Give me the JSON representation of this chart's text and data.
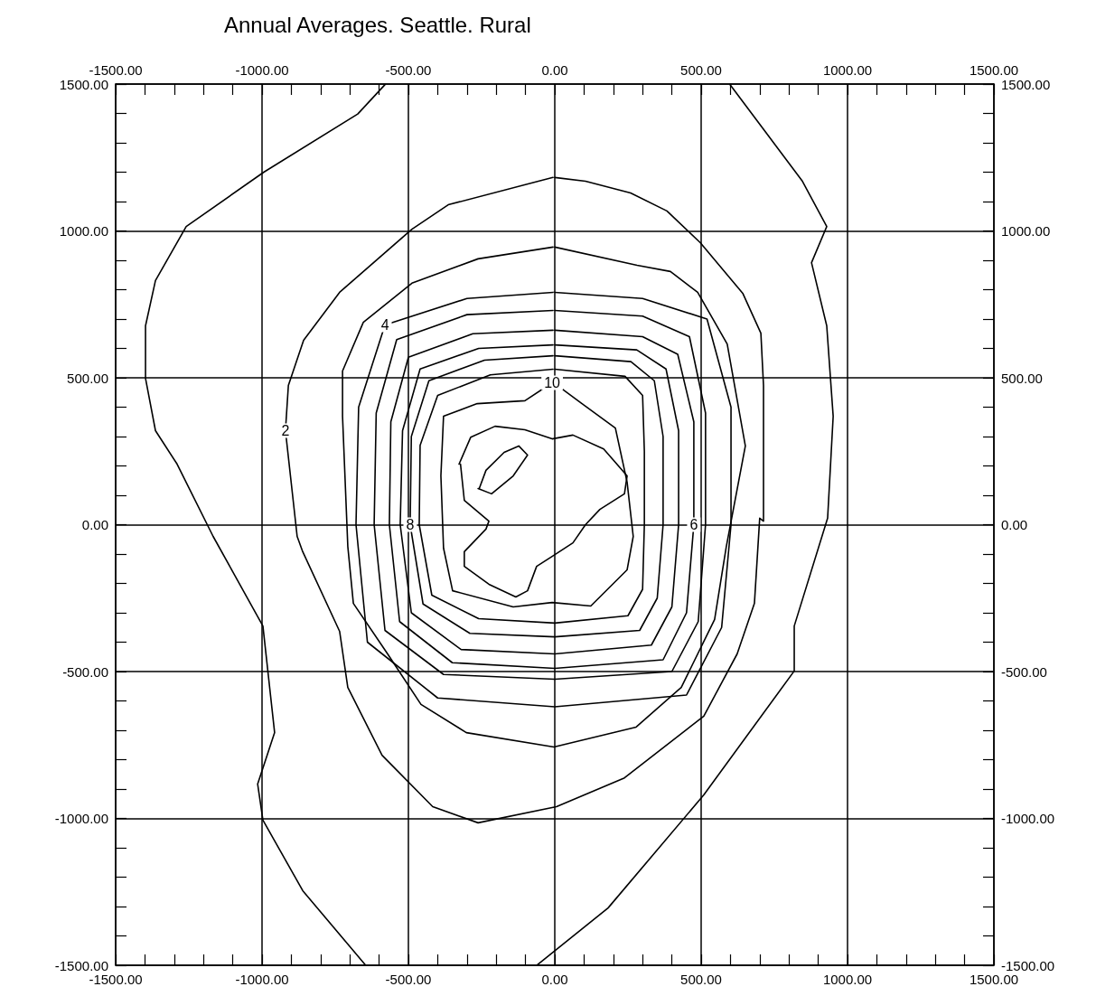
{
  "chart_data": {
    "type": "line",
    "title": "Annual Averages. Seattle. Rural",
    "marker": "none",
    "line_style": "solid",
    "grid": true,
    "legend": false,
    "xlim": [
      -1500,
      1500
    ],
    "x2lim": [
      -1500,
      1500
    ],
    "ylim": [
      -1500,
      1500
    ],
    "y2lim": [
      -1500,
      1500
    ],
    "xticks": [
      {
        "value": -1500,
        "label": "-1500.00"
      },
      {
        "value": -1400,
        "label": null
      },
      {
        "value": -1300,
        "label": null
      },
      {
        "value": -1200,
        "label": null
      },
      {
        "value": -1100,
        "label": null
      },
      {
        "value": -1000,
        "label": "-1000.00"
      },
      {
        "value": -900,
        "label": null
      },
      {
        "value": -800,
        "label": null
      },
      {
        "value": -700,
        "label": null
      },
      {
        "value": -600,
        "label": null
      },
      {
        "value": -500,
        "label": "-500.00"
      },
      {
        "value": -400,
        "label": null
      },
      {
        "value": -300,
        "label": null
      },
      {
        "value": -200,
        "label": null
      },
      {
        "value": -100,
        "label": null
      },
      {
        "value": 0,
        "label": "0.00"
      },
      {
        "value": 100,
        "label": null
      },
      {
        "value": 200,
        "label": null
      },
      {
        "value": 300,
        "label": null
      },
      {
        "value": 400,
        "label": null
      },
      {
        "value": 500,
        "label": "500.00"
      },
      {
        "value": 600,
        "label": null
      },
      {
        "value": 700,
        "label": null
      },
      {
        "value": 800,
        "label": null
      },
      {
        "value": 900,
        "label": null
      },
      {
        "value": 1000,
        "label": "1000.00"
      },
      {
        "value": 1100,
        "label": null
      },
      {
        "value": 1200,
        "label": null
      },
      {
        "value": 1300,
        "label": null
      },
      {
        "value": 1400,
        "label": null
      },
      {
        "value": 1500,
        "label": "1500.00"
      }
    ],
    "x2ticks": [
      {
        "value": -1500,
        "label": "-1500.00"
      },
      {
        "value": -1400,
        "label": null
      },
      {
        "value": -1300,
        "label": null
      },
      {
        "value": -1200,
        "label": null
      },
      {
        "value": -1100,
        "label": null
      },
      {
        "value": -1000,
        "label": "-1000.00"
      },
      {
        "value": -900,
        "label": null
      },
      {
        "value": -800,
        "label": null
      },
      {
        "value": -700,
        "label": null
      },
      {
        "value": -600,
        "label": null
      },
      {
        "value": -500,
        "label": "-500.00"
      },
      {
        "value": -400,
        "label": null
      },
      {
        "value": -300,
        "label": null
      },
      {
        "value": -200,
        "label": null
      },
      {
        "value": -100,
        "label": null
      },
      {
        "value": 0,
        "label": "0.00"
      },
      {
        "value": 100,
        "label": null
      },
      {
        "value": 200,
        "label": null
      },
      {
        "value": 300,
        "label": null
      },
      {
        "value": 400,
        "label": null
      },
      {
        "value": 500,
        "label": "500.00"
      },
      {
        "value": 600,
        "label": null
      },
      {
        "value": 700,
        "label": null
      },
      {
        "value": 800,
        "label": null
      },
      {
        "value": 900,
        "label": null
      },
      {
        "value": 1000,
        "label": "1000.00"
      },
      {
        "value": 1100,
        "label": null
      },
      {
        "value": 1200,
        "label": null
      },
      {
        "value": 1300,
        "label": null
      },
      {
        "value": 1400,
        "label": null
      },
      {
        "value": 1500,
        "label": "1500.00"
      }
    ],
    "yticks": [
      {
        "value": -1500,
        "label": "-1500.00"
      },
      {
        "value": -1400,
        "label": null
      },
      {
        "value": -1300,
        "label": null
      },
      {
        "value": -1200,
        "label": null
      },
      {
        "value": -1100,
        "label": null
      },
      {
        "value": -1000,
        "label": "-1000.00"
      },
      {
        "value": -900,
        "label": null
      },
      {
        "value": -800,
        "label": null
      },
      {
        "value": -700,
        "label": null
      },
      {
        "value": -600,
        "label": null
      },
      {
        "value": -500,
        "label": "-500.00"
      },
      {
        "value": -400,
        "label": null
      },
      {
        "value": -300,
        "label": null
      },
      {
        "value": -200,
        "label": null
      },
      {
        "value": -100,
        "label": null
      },
      {
        "value": 0,
        "label": "0.00"
      },
      {
        "value": 100,
        "label": null
      },
      {
        "value": 200,
        "label": null
      },
      {
        "value": 300,
        "label": null
      },
      {
        "value": 400,
        "label": null
      },
      {
        "value": 500,
        "label": "500.00"
      },
      {
        "value": 600,
        "label": null
      },
      {
        "value": 700,
        "label": null
      },
      {
        "value": 800,
        "label": null
      },
      {
        "value": 900,
        "label": null
      },
      {
        "value": 1000,
        "label": "1000.00"
      },
      {
        "value": 1100,
        "label": null
      },
      {
        "value": 1200,
        "label": null
      },
      {
        "value": 1300,
        "label": null
      },
      {
        "value": 1400,
        "label": null
      },
      {
        "value": 1500,
        "label": "1500.00"
      }
    ],
    "y2ticks": [
      {
        "value": -1500,
        "label": "-1500.00"
      },
      {
        "value": -1400,
        "label": null
      },
      {
        "value": -1300,
        "label": null
      },
      {
        "value": -1200,
        "label": null
      },
      {
        "value": -1100,
        "label": null
      },
      {
        "value": -1000,
        "label": "-1000.00"
      },
      {
        "value": -900,
        "label": null
      },
      {
        "value": -800,
        "label": null
      },
      {
        "value": -700,
        "label": null
      },
      {
        "value": -600,
        "label": null
      },
      {
        "value": -500,
        "label": "-500.00"
      },
      {
        "value": -400,
        "label": null
      },
      {
        "value": -300,
        "label": null
      },
      {
        "value": -200,
        "label": null
      },
      {
        "value": -100,
        "label": null
      },
      {
        "value": 0,
        "label": "0.00"
      },
      {
        "value": 100,
        "label": null
      },
      {
        "value": 200,
        "label": null
      },
      {
        "value": 300,
        "label": null
      },
      {
        "value": 400,
        "label": null
      },
      {
        "value": 500,
        "label": "500.00"
      },
      {
        "value": 600,
        "label": null
      },
      {
        "value": 700,
        "label": null
      },
      {
        "value": 800,
        "label": null
      },
      {
        "value": 900,
        "label": null
      },
      {
        "value": 1000,
        "label": "1000.00"
      },
      {
        "value": 1100,
        "label": null
      },
      {
        "value": 1200,
        "label": null
      },
      {
        "value": 1300,
        "label": null
      },
      {
        "value": 1400,
        "label": null
      },
      {
        "value": 1500,
        "label": "1500.00"
      }
    ],
    "series": [
      {
        "color": "#000000",
        "x": [
          -580,
          -673,
          -994,
          -1259,
          -1364,
          -1398,
          -1398,
          -1364,
          -1290,
          -1167,
          -997,
          -957,
          -1015,
          -997,
          -861,
          -648
        ],
        "values": [
          1498,
          1398,
          1200,
          1015,
          831,
          677,
          498,
          320,
          206,
          -40,
          -345,
          -708,
          -883,
          -1006,
          -1246,
          -1498
        ]
      },
      {
        "color": "#000000",
        "x": [
          -59,
          182,
          509,
          818,
          818,
          932,
          951,
          929,
          877,
          929,
          846,
          599
        ],
        "values": [
          -1498,
          -1305,
          -920,
          -498,
          -345,
          22,
          369,
          677,
          892,
          1015,
          1169,
          1498
        ]
      },
      {
        "name": "2",
        "color": "#000000",
        "x": [
          -6,
          -364,
          -488,
          -735,
          -858,
          -910,
          -920,
          -880,
          -861,
          -735,
          -707,
          -590,
          -417,
          -262,
          6,
          238,
          509,
          623,
          682,
          700,
          713,
          713,
          704,
          642,
          497,
          383,
          259,
          105,
          0
        ],
        "values": [
          1182,
          1089,
          1006,
          791,
          628,
          474,
          320,
          -40,
          -92,
          -363,
          -554,
          -785,
          -960,
          -1015,
          -960,
          -862,
          -652,
          -440,
          -268,
          22,
          12,
          474,
          652,
          788,
          960,
          1068,
          1129,
          1169,
          1182
        ]
      },
      {
        "color": "#000000",
        "x": [
          -6,
          -262,
          -488,
          -654,
          -725,
          -725,
          -707,
          -688,
          -571,
          -457,
          -302,
          -3,
          278,
          432,
          546,
          586,
          651,
          589,
          488,
          395,
          281,
          0
        ],
        "values": [
          945,
          905,
          822,
          689,
          523,
          369,
          -74,
          -268,
          -440,
          -612,
          -708,
          -757,
          -689,
          -554,
          -323,
          -74,
          268,
          615,
          791,
          862,
          883,
          945
        ]
      },
      {
        "name": "4",
        "color": "#000000",
        "x": [
          0,
          300,
          520,
          602,
          602,
          570,
          450,
          0,
          -400,
          -640,
          -679,
          -670,
          -580,
          -300,
          -6
        ],
        "values": [
          791,
          770,
          700,
          400,
          0,
          -350,
          -580,
          -620,
          -590,
          -400,
          0,
          400,
          680,
          770,
          791
        ]
      },
      {
        "color": "#000000",
        "x": [
          0,
          300,
          460,
          515,
          515,
          490,
          400,
          0,
          -380,
          -580,
          -617,
          -610,
          -540,
          -300,
          -6
        ],
        "values": [
          729,
          710,
          640,
          380,
          0,
          -330,
          -500,
          -526,
          -510,
          -360,
          0,
          380,
          630,
          715,
          729
        ]
      },
      {
        "name": "6",
        "color": "#000000",
        "x": [
          0,
          300,
          420,
          475,
          475,
          450,
          370,
          0,
          -350,
          -530,
          -565,
          -560,
          -500,
          -280,
          -6
        ],
        "values": [
          662,
          640,
          580,
          350,
          0,
          -300,
          -460,
          -489,
          -470,
          -330,
          0,
          350,
          570,
          650,
          662
        ]
      },
      {
        "color": "#000000",
        "x": [
          0,
          280,
          380,
          423,
          423,
          400,
          330,
          0,
          -320,
          -490,
          -528,
          -520,
          -460,
          -260,
          -6
        ],
        "values": [
          612,
          595,
          530,
          320,
          0,
          -280,
          -410,
          -440,
          -425,
          -300,
          0,
          320,
          530,
          600,
          612
        ]
      },
      {
        "name": "8",
        "color": "#000000",
        "x": [
          0,
          260,
          340,
          370,
          370,
          350,
          290,
          0,
          -290,
          -450,
          -494,
          -490,
          -430,
          -240,
          -6
        ],
        "values": [
          575,
          555,
          490,
          300,
          0,
          -250,
          -360,
          -382,
          -370,
          -270,
          0,
          300,
          490,
          560,
          575
        ]
      },
      {
        "color": "#000000",
        "x": [
          0,
          240,
          300,
          306,
          306,
          300,
          250,
          0,
          -260,
          -420,
          -463,
          -460,
          -400,
          -220,
          -6
        ],
        "values": [
          529,
          505,
          440,
          250,
          0,
          -220,
          -310,
          -335,
          -320,
          -240,
          0,
          270,
          440,
          510,
          529
        ]
      },
      {
        "name": "10",
        "color": "#000000",
        "x": [
          -9,
          -102,
          -265,
          -380,
          -389,
          -380,
          -349,
          -142,
          -9,
          123,
          247,
          268,
          247,
          207,
          93,
          -3
        ],
        "values": [
          483,
          422,
          412,
          369,
          166,
          -80,
          -225,
          -280,
          -265,
          -277,
          -154,
          -40,
          145,
          329,
          412,
          483
        ]
      },
      {
        "color": "#000000",
        "x": [
          -327,
          -287,
          -204,
          -102,
          -9,
          62,
          167,
          247,
          238,
          154,
          105,
          62,
          -9,
          -62,
          -93,
          -133,
          -225,
          -309,
          -309,
          -235,
          -225,
          -309,
          -322
        ],
        "values": [
          206,
          298,
          335,
          323,
          292,
          305,
          258,
          166,
          105,
          52,
          0,
          -62,
          -108,
          -142,
          -225,
          -246,
          -203,
          -142,
          -92,
          -15,
          12,
          83,
          206
        ]
      },
      {
        "color": "#000000",
        "x": [
          -262,
          -216,
          -142,
          -93,
          -123,
          -173,
          -235,
          -258
        ],
        "values": [
          123,
          105,
          166,
          237,
          268,
          246,
          185,
          123
        ]
      }
    ]
  }
}
